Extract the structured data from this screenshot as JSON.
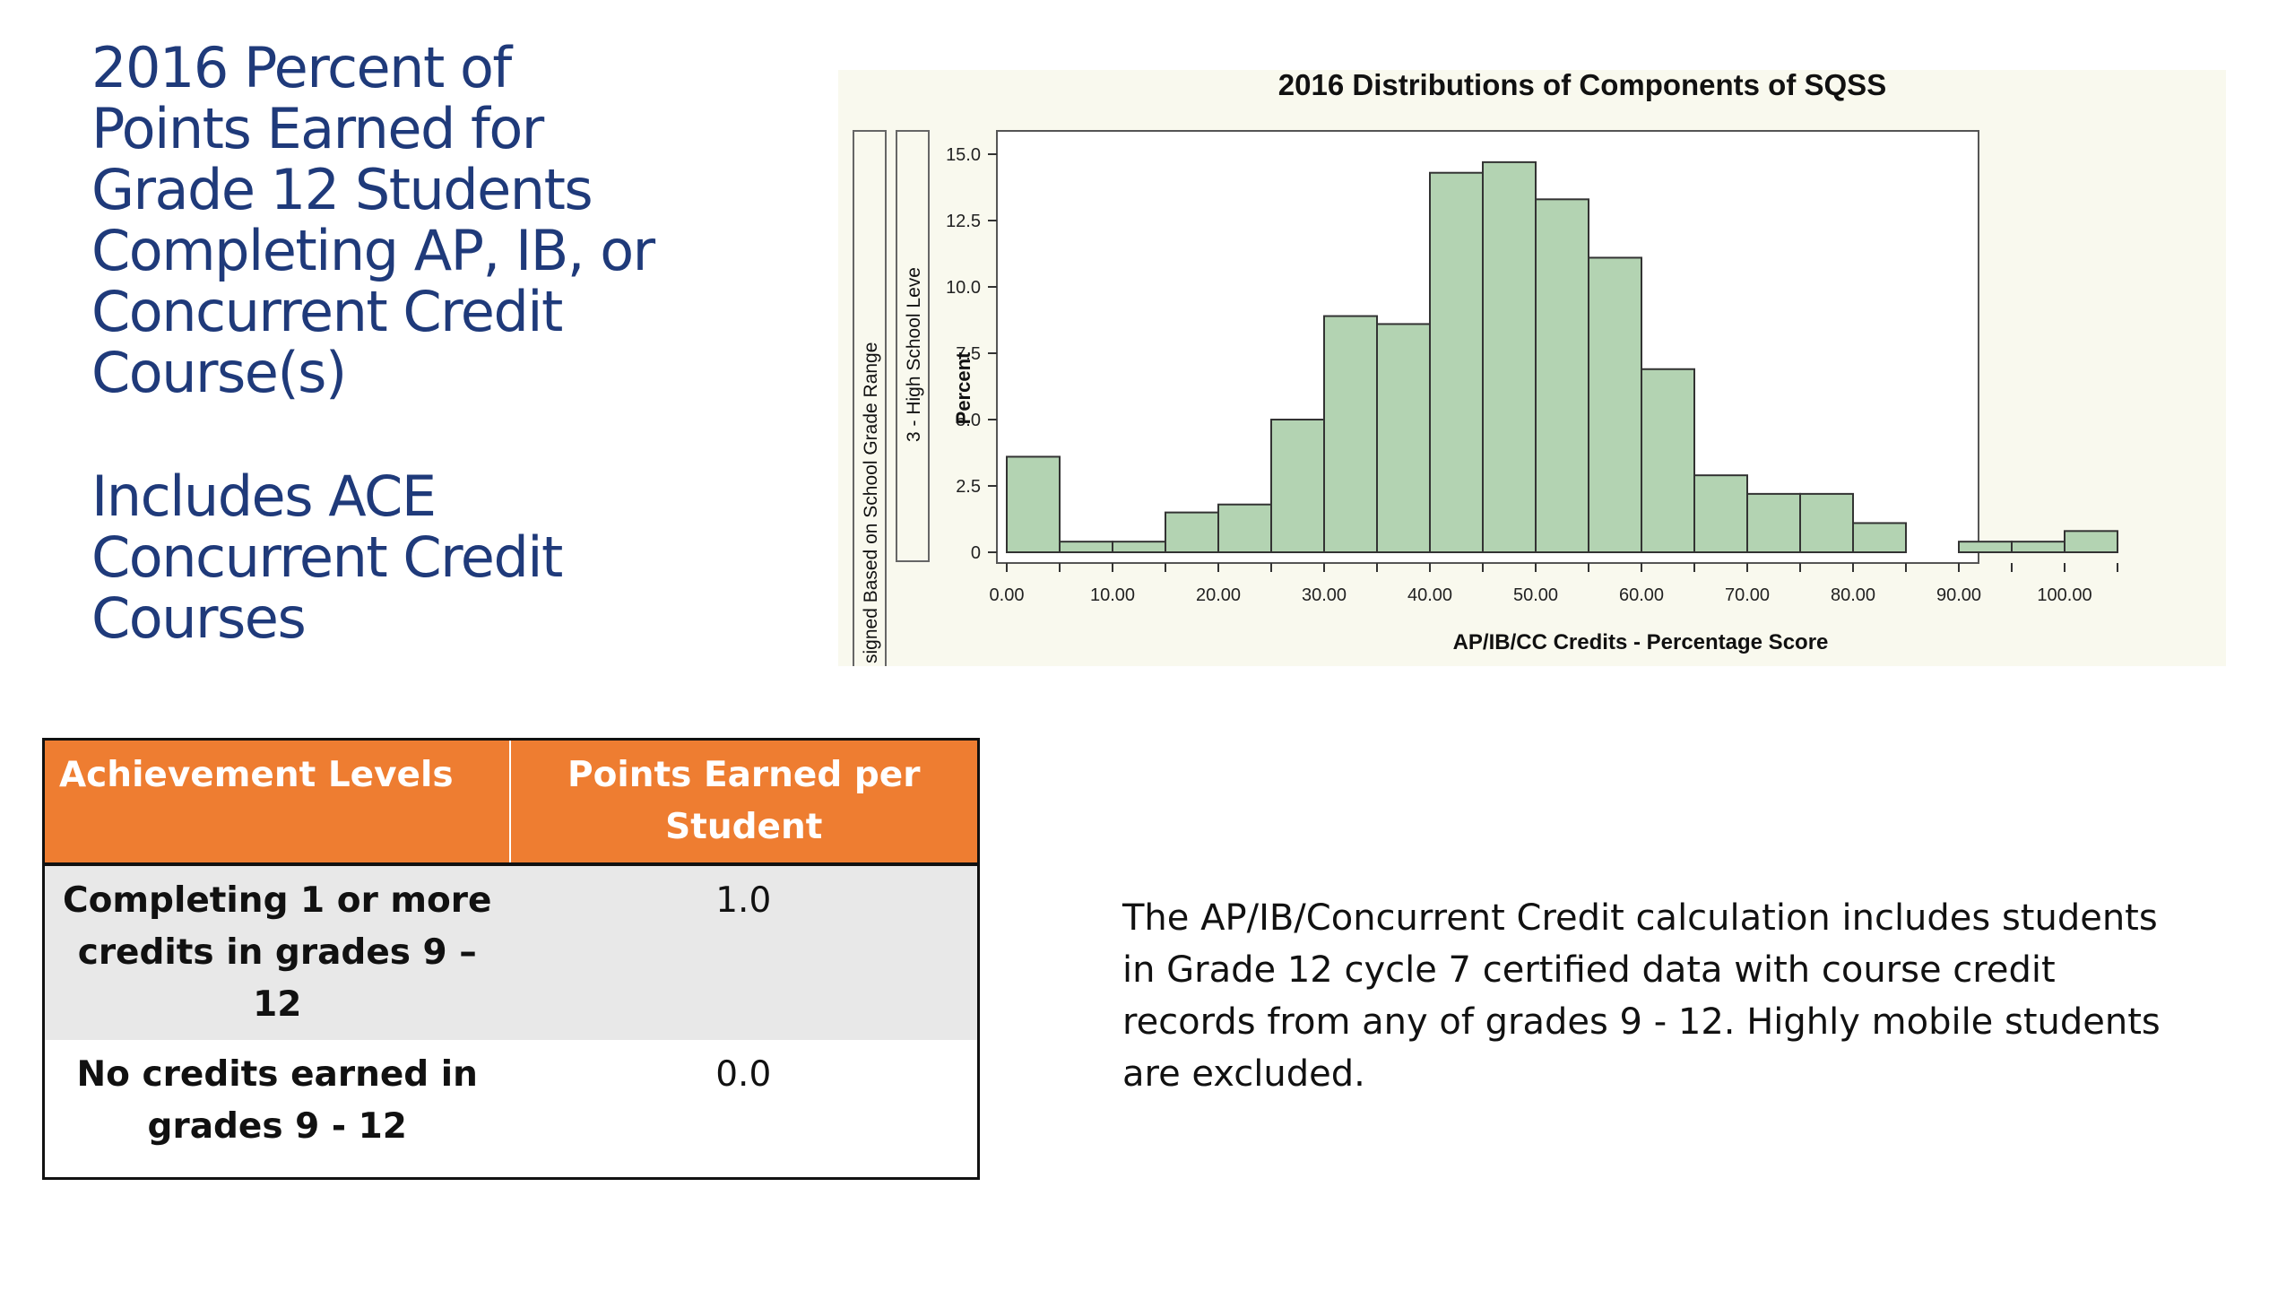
{
  "slide": {
    "title": "2016 Percent of\nPoints Earned for\nGrade 12 Students\nCompleting AP, IB, or\nConcurrent Credit\nCourse(s)",
    "subtitle": "Includes ACE\nConcurrent Credit\nCourses",
    "note": "The AP/IB/Concurrent Credit calculation includes students in Grade 12 cycle 7 certified data with course credit records from any of grades 9 - 12. Highly mobile students are excluded."
  },
  "table": {
    "headers": [
      "Achievement Levels",
      "Points Earned per Student"
    ],
    "rows": [
      {
        "level": "Completing 1 or more credits in grades 9 – 12",
        "points": "1.0"
      },
      {
        "level": "No credits earned in grades 9 - 12",
        "points": "0.0"
      }
    ],
    "colors": {
      "header_bg": "#ee7d31",
      "header_text": "#ffffff",
      "shaded_row": "#e8e8e8"
    }
  },
  "chart_data": {
    "type": "bar",
    "title": "2016 Distributions of Components of SQSS",
    "xlabel": "AP/IB/CC Credits - Percentage Score",
    "ylabel": "Percent",
    "panel_labels": [
      "signed Based on School Grade Range",
      "3 - High School Leve"
    ],
    "bin_width": 5,
    "x_range": [
      0,
      105
    ],
    "ylim": [
      0,
      16.2
    ],
    "x_ticks": [
      "0.00",
      "10.00",
      "20.00",
      "30.00",
      "40.00",
      "50.00",
      "60.00",
      "70.00",
      "80.00",
      "90.00",
      "100.00"
    ],
    "y_ticks": [
      "0",
      "2.5",
      "5.0",
      "7.5",
      "10.0",
      "12.5",
      "15.0"
    ],
    "bins": [
      {
        "x": 0,
        "value": 3.6
      },
      {
        "x": 5,
        "value": 0.4
      },
      {
        "x": 10,
        "value": 0.4
      },
      {
        "x": 15,
        "value": 1.5
      },
      {
        "x": 20,
        "value": 1.8
      },
      {
        "x": 25,
        "value": 5.0
      },
      {
        "x": 30,
        "value": 8.9
      },
      {
        "x": 35,
        "value": 8.6
      },
      {
        "x": 40,
        "value": 14.3
      },
      {
        "x": 45,
        "value": 14.7
      },
      {
        "x": 50,
        "value": 13.3
      },
      {
        "x": 55,
        "value": 11.1
      },
      {
        "x": 60,
        "value": 6.9
      },
      {
        "x": 65,
        "value": 2.9
      },
      {
        "x": 70,
        "value": 2.2
      },
      {
        "x": 75,
        "value": 2.2
      },
      {
        "x": 80,
        "value": 1.1
      },
      {
        "x": 85,
        "value": 0
      },
      {
        "x": 90,
        "value": 0.4
      },
      {
        "x": 95,
        "value": 0.4
      },
      {
        "x": 100,
        "value": 0.8
      }
    ],
    "grid": false,
    "legend": "none",
    "colors": {
      "bar_fill": "#b3d3b2",
      "bar_stroke": "#333333",
      "background": "#f9f9ee"
    }
  }
}
